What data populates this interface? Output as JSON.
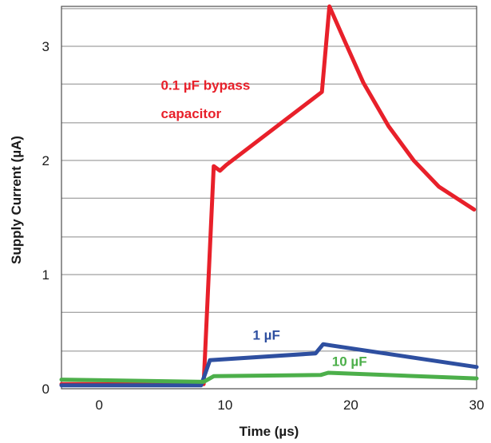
{
  "chart_data": {
    "type": "line",
    "xlabel": "Time (µs)",
    "ylabel": "Supply Current (µA)",
    "xlim": [
      -3,
      30
    ],
    "ylim": [
      0,
      3.35
    ],
    "xticks": [
      0,
      10,
      20,
      30
    ],
    "xtick_labels": [
      "0",
      "10",
      "20",
      "30"
    ],
    "yticks": [
      0,
      1,
      2,
      3
    ],
    "ytick_labels": [
      "0",
      "1",
      "2",
      "3"
    ],
    "gridlines_y": [
      0.33,
      0.67,
      1,
      1.33,
      1.67,
      2,
      2.33,
      2.67,
      3,
      3.33
    ],
    "grid": true,
    "series": [
      {
        "color": "#e8202a",
        "x": [
          -3,
          8.3,
          9.1,
          9.6,
          10.1,
          17.7,
          18.3,
          19.5,
          21,
          23,
          25,
          27,
          29.8
        ],
        "y": [
          0.04,
          0.04,
          1.95,
          1.91,
          1.96,
          2.6,
          3.35,
          3.05,
          2.68,
          2.3,
          2.0,
          1.77,
          1.57
        ]
      },
      {
        "color": "#2e4fa0",
        "x": [
          -3,
          8.1,
          8.8,
          17.2,
          17.8,
          18.4,
          30
        ],
        "y": [
          0.03,
          0.03,
          0.25,
          0.31,
          0.39,
          0.38,
          0.19
        ]
      },
      {
        "color": "#4caf4a",
        "x": [
          -3,
          8.3,
          9.1,
          17.6,
          18.2,
          30
        ],
        "y": [
          0.08,
          0.06,
          0.11,
          0.12,
          0.14,
          0.09
        ]
      }
    ],
    "annotations": [
      {
        "text": "0.1 µF bypass",
        "x": 4.9,
        "y": 2.62,
        "color": "#e8202a"
      },
      {
        "text": "capacitor",
        "x": 4.9,
        "y": 2.37,
        "color": "#e8202a"
      },
      {
        "text": "1 µF",
        "x": 12.2,
        "y": 0.43,
        "color": "#2e4fa0"
      },
      {
        "text": "10 µF",
        "x": 18.5,
        "y": 0.2,
        "color": "#4caf4a"
      }
    ]
  }
}
